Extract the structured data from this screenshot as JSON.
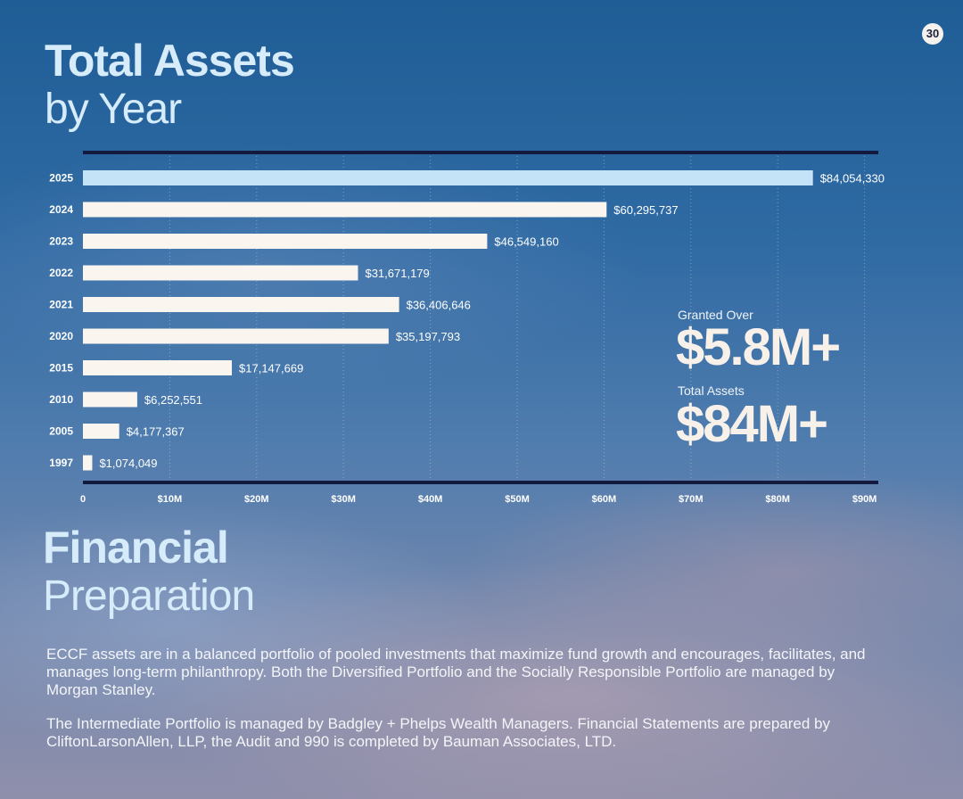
{
  "page_number": "30",
  "title": {
    "bold": "Total Assets",
    "light": "by Year"
  },
  "chart_data": {
    "type": "bar",
    "orientation": "horizontal",
    "categories": [
      "2025",
      "2024",
      "2023",
      "2022",
      "2021",
      "2020",
      "2015",
      "2010",
      "2005",
      "1997"
    ],
    "values": [
      84054330,
      60295737,
      46549160,
      31671179,
      36406646,
      35197793,
      17147669,
      6252551,
      4177367,
      1074049
    ],
    "value_labels": [
      "$84,054,330",
      "$60,295,737",
      "$46,549,160",
      "$31,671,179",
      "$36,406,646",
      "$35,197,793",
      "$17,147,669",
      "$6,252,551",
      "$4,177,367",
      "$1,074,049"
    ],
    "x_ticks": [
      0,
      10000000,
      20000000,
      30000000,
      40000000,
      50000000,
      60000000,
      70000000,
      80000000,
      90000000
    ],
    "x_tick_labels": [
      "0",
      "$10M",
      "$20M",
      "$30M",
      "$40M",
      "$50M",
      "$60M",
      "$70M",
      "$80M",
      "$90M"
    ],
    "xlim": [
      0,
      91500000
    ],
    "grid": "vertical dotted",
    "highlight_category": "2025",
    "colors": {
      "bar": "#faf5ef",
      "highlight_bar": "#c5e3f7",
      "rule": "#141a3e",
      "text": "#ffffff"
    }
  },
  "stats": {
    "granted": {
      "label": "Granted Over",
      "value": "$5.8M+"
    },
    "total": {
      "label": "Total Assets",
      "value": "$84M+"
    }
  },
  "section": {
    "title_bold": "Financial",
    "title_light": "Preparation",
    "paragraphs": [
      "ECCF assets are in a balanced portfolio of pooled investments that maximize fund growth and encourages, facilitates, and manages long-term philanthropy. Both the Diversified Portfolio and the Socially Responsible Portfolio are managed by Morgan Stanley.",
      "The Intermediate Portfolio is managed by Badgley + Phelps Wealth Managers. Financial Statements are prepared by CliftonLarsonAllen, LLP, the Audit and 990 is completed by Bauman Associates, LTD."
    ]
  }
}
